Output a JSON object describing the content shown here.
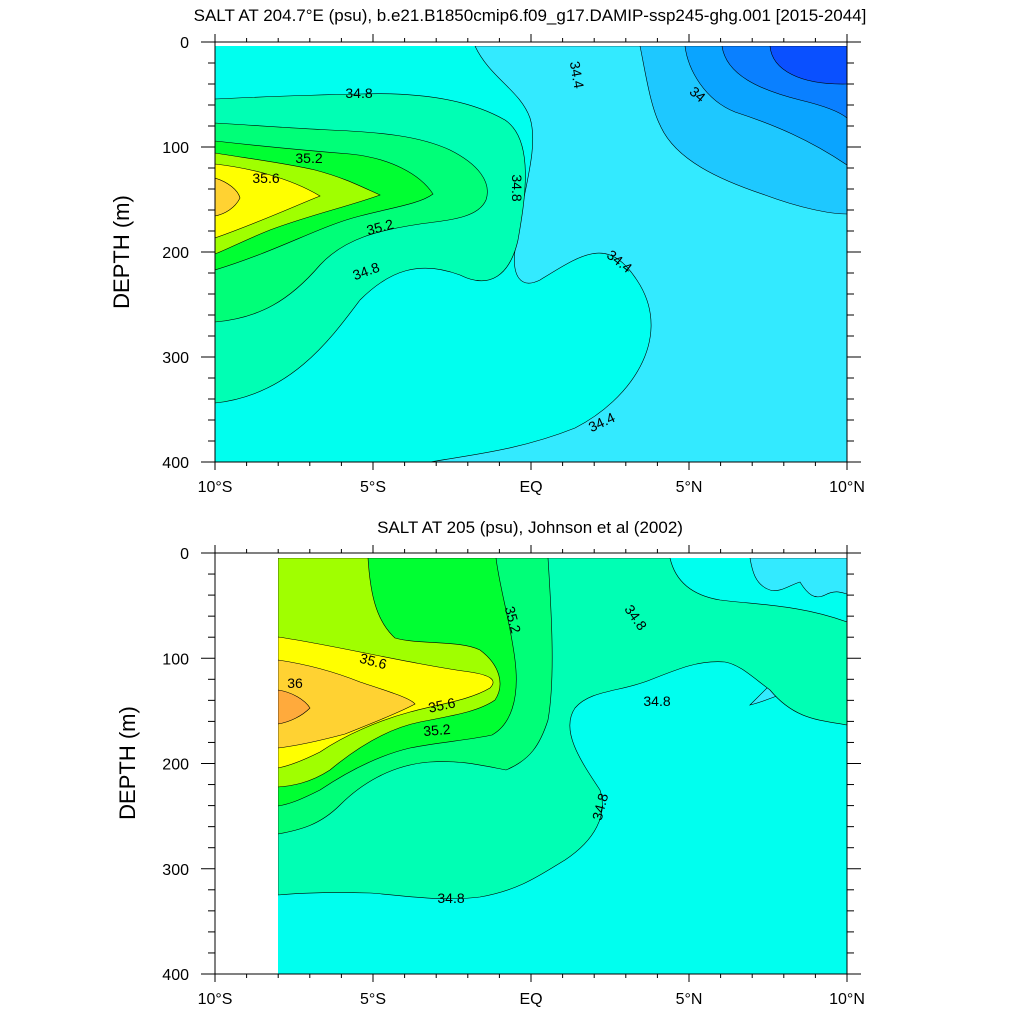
{
  "chart_data": [
    {
      "type": "contour",
      "title": "SALT AT 204.7°E (psu), b.e21.B1850cmip6.f09_g17.DAMIP-ssp245-ghg.001 [2015-2044]",
      "xlabel": "",
      "ylabel": "DEPTH (m)",
      "xlim": [
        -10,
        10
      ],
      "ylim": [
        400,
        0
      ],
      "x_ticks": [
        -10,
        -5,
        0,
        5,
        10
      ],
      "x_tick_labels": [
        "10°S",
        "5°S",
        "EQ",
        "5°N",
        "10°N"
      ],
      "y_ticks": [
        0,
        100,
        200,
        300,
        400
      ],
      "y_tick_labels": [
        "0",
        "100",
        "200",
        "300",
        "400"
      ],
      "grid": false,
      "data_xrange": [
        -10,
        10
      ],
      "contour_labels": [
        {
          "text": "34.8",
          "x": -6.2,
          "y": 48
        },
        {
          "text": "35.2",
          "x": -6.7,
          "y": 108
        },
        {
          "text": "35.6",
          "x": -8.5,
          "y": 127
        },
        {
          "text": "35.2",
          "x": -4.9,
          "y": 175
        },
        {
          "text": "34.8",
          "x": -5.3,
          "y": 220
        },
        {
          "text": "34.8",
          "x": -0.5,
          "y": 135
        },
        {
          "text": "34.4",
          "x": 1.4,
          "y": 32
        },
        {
          "text": "34",
          "x": 5.4,
          "y": 50
        },
        {
          "text": "34.4",
          "x": 2.9,
          "y": 210
        },
        {
          "text": "34.4",
          "x": 2.2,
          "y": 375
        }
      ]
    },
    {
      "type": "contour",
      "title": "SALT AT 205 (psu), Johnson et al (2002)",
      "xlabel": "",
      "ylabel": "DEPTH (m)",
      "xlim": [
        -10,
        10
      ],
      "ylim": [
        400,
        0
      ],
      "x_ticks": [
        -10,
        -5,
        0,
        5,
        10
      ],
      "x_tick_labels": [
        "10°S",
        "5°S",
        "EQ",
        "5°N",
        "10°N"
      ],
      "y_ticks": [
        0,
        100,
        200,
        300,
        400
      ],
      "y_tick_labels": [
        "0",
        "100",
        "200",
        "300",
        "400"
      ],
      "grid": false,
      "data_xrange": [
        -8,
        10
      ],
      "contour_labels": [
        {
          "text": "35.2",
          "x": -0.6,
          "y": 62
        },
        {
          "text": "34.8",
          "x": 3.3,
          "y": 60
        },
        {
          "text": "35.6",
          "x": -5.9,
          "y": 100
        },
        {
          "text": "36",
          "x": -7.6,
          "y": 120
        },
        {
          "text": "35.6",
          "x": -3.1,
          "y": 142
        },
        {
          "text": "35.2",
          "x": -3.0,
          "y": 167
        },
        {
          "text": "34.8",
          "x": 3.9,
          "y": 140
        },
        {
          "text": "34.8",
          "x": 2.2,
          "y": 240
        },
        {
          "text": "34.8",
          "x": -2.6,
          "y": 325
        }
      ]
    }
  ]
}
